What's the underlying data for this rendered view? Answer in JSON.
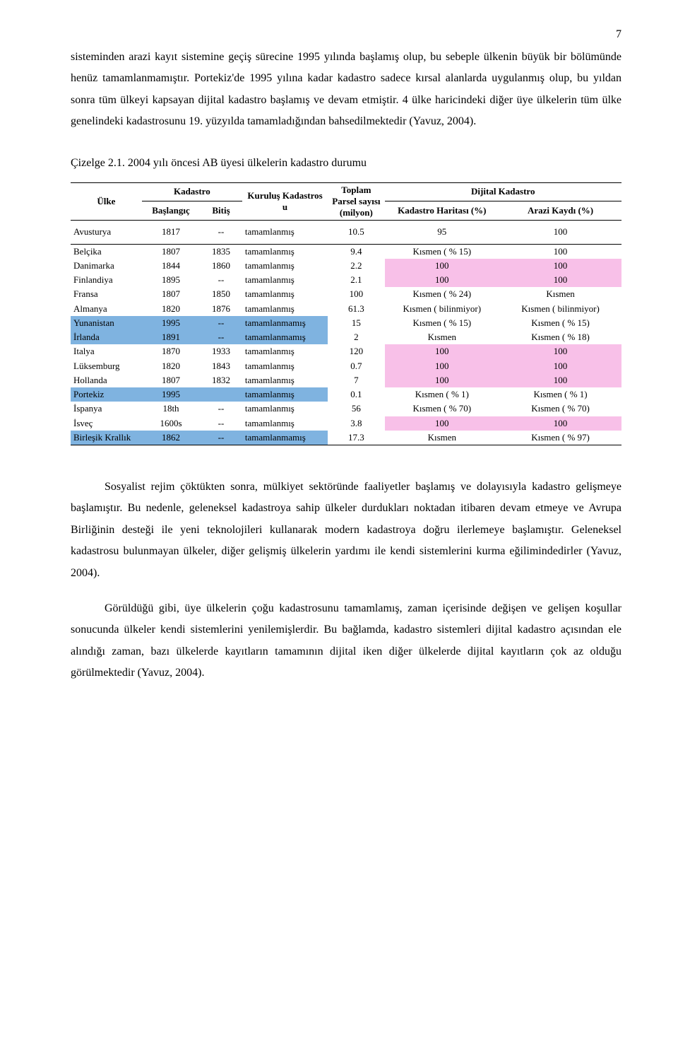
{
  "page_number": "7",
  "paragraphs": {
    "p1": "sisteminden arazi kayıt sistemine geçiş sürecine 1995 yılında başlamış olup, bu sebeple ülkenin büyük bir bölümünde henüz tamamlanmamıştır. Portekiz'de 1995 yılına kadar kadastro sadece kırsal alanlarda uygulanmış olup, bu yıldan sonra tüm ülkeyi kapsayan dijital kadastro başlamış ve devam etmiştir. 4 ülke haricindeki diğer üye ülkelerin tüm ülke genelindeki kadastrosunu 19. yüzyılda tamamladığından bahsedilmektedir (Yavuz, 2004).",
    "p2": "Sosyalist rejim çöktükten sonra, mülkiyet sektöründe faaliyetler başlamış ve dolayısıyla kadastro gelişmeye başlamıştır. Bu nedenle, geleneksel kadastroya sahip ülkeler durdukları noktadan itibaren devam etmeye ve Avrupa Birliğinin desteği ile yeni teknolojileri kullanarak modern kadastroya doğru ilerlemeye başlamıştır. Geleneksel kadastrosu bulunmayan ülkeler, diğer gelişmiş ülkelerin yardımı ile kendi sistemlerini kurma eğilimindedirler (Yavuz, 2004).",
    "p3": "Görüldüğü gibi, üye ülkelerin çoğu kadastrosunu tamamlamış, zaman içerisinde değişen ve gelişen koşullar sonucunda ülkeler kendi sistemlerini yenilemişlerdir. Bu bağlamda, kadastro sistemleri dijital kadastro açısından ele alındığı zaman, bazı ülkelerde kayıtların tamamının dijital iken diğer ülkelerde dijital kayıtların çok az olduğu görülmektedir (Yavuz, 2004)."
  },
  "table_caption": "Çizelge 2.1. 2004 yılı öncesi AB üyesi ülkelerin kadastro durumu",
  "table": {
    "headers": {
      "ulke": "Ülke",
      "kadastro": "Kadastro",
      "baslangic": "Başlangıç",
      "bitis": "Bitiş",
      "kurulus": "Kuruluş Kadastros u",
      "toplam": "Toplam Parsel sayısı (milyon)",
      "dijital": "Dijital Kadastro",
      "harita": "Kadastro Haritası (%)",
      "arazi": "Arazi Kaydı (%)"
    },
    "highlight_colors": {
      "blue": "#7fb3e0",
      "pink": "#f8c0e8"
    },
    "rows": [
      {
        "ulke": "Avusturya",
        "start": "1817",
        "end": "--",
        "status": "tamamlanmış",
        "parcel": "10.5",
        "map": "95",
        "land": "100",
        "hl_ulke": null,
        "hl_map": null,
        "hl_land": null
      },
      {
        "ulke": "Belçika",
        "start": "1807",
        "end": "1835",
        "status": "tamamlanmış",
        "parcel": "9.4",
        "map": "Kısmen ( % 15)",
        "land": "100",
        "hl_ulke": null,
        "hl_map": null,
        "hl_land": null
      },
      {
        "ulke": "Danimarka",
        "start": "1844",
        "end": "1860",
        "status": "tamamlanmış",
        "parcel": "2.2",
        "map": "100",
        "land": "100",
        "hl_ulke": null,
        "hl_map": "pink",
        "hl_land": "pink"
      },
      {
        "ulke": "Finlandiya",
        "start": "1895",
        "end": "--",
        "status": "tamamlanmış",
        "parcel": "2.1",
        "map": "100",
        "land": "100",
        "hl_ulke": null,
        "hl_map": "pink",
        "hl_land": "pink"
      },
      {
        "ulke": "Fransa",
        "start": "1807",
        "end": "1850",
        "status": "tamamlanmış",
        "parcel": "100",
        "map": "Kısmen ( % 24)",
        "land": "Kısmen",
        "hl_ulke": null,
        "hl_map": null,
        "hl_land": null
      },
      {
        "ulke": "Almanya",
        "start": "1820",
        "end": "1876",
        "status": "tamamlanmış",
        "parcel": "61.3",
        "map": "Kısmen ( bilinmiyor)",
        "land": "Kısmen ( bilinmiyor)",
        "hl_ulke": null,
        "hl_map": null,
        "hl_land": null
      },
      {
        "ulke": "Yunanistan",
        "start": "1995",
        "end": "--",
        "status": "tamamlanmamış",
        "parcel": "15",
        "map": "Kısmen ( % 15)",
        "land": "Kısmen ( % 15)",
        "hl_ulke": "blue",
        "hl_map": null,
        "hl_land": null
      },
      {
        "ulke": "İrlanda",
        "start": "1891",
        "end": "--",
        "status": "tamamlanmamış",
        "parcel": "2",
        "map": "Kısmen",
        "land": "Kısmen ( % 18)",
        "hl_ulke": "blue",
        "hl_map": null,
        "hl_land": null
      },
      {
        "ulke": "Italya",
        "start": "1870",
        "end": "1933",
        "status": "tamamlanmış",
        "parcel": "120",
        "map": "100",
        "land": "100",
        "hl_ulke": null,
        "hl_map": "pink",
        "hl_land": "pink"
      },
      {
        "ulke": "Lüksemburg",
        "start": "1820",
        "end": "1843",
        "status": "tamamlanmış",
        "parcel": "0.7",
        "map": "100",
        "land": "100",
        "hl_ulke": null,
        "hl_map": "pink",
        "hl_land": "pink"
      },
      {
        "ulke": "Hollanda",
        "start": "1807",
        "end": "1832",
        "status": "tamamlanmış",
        "parcel": "7",
        "map": "100",
        "land": "100",
        "hl_ulke": null,
        "hl_map": "pink",
        "hl_land": "pink"
      },
      {
        "ulke": "Portekiz",
        "start": "1995",
        "end": "",
        "status": "tamamlanmış",
        "parcel": "0.1",
        "map": "Kısmen ( % 1)",
        "land": "Kısmen ( % 1)",
        "hl_ulke": "blue",
        "hl_map": null,
        "hl_land": null
      },
      {
        "ulke": "İspanya",
        "start": "18th",
        "end": "--",
        "status": "tamamlanmış",
        "parcel": "56",
        "map": "Kısmen ( % 70)",
        "land": "Kısmen ( % 70)",
        "hl_ulke": null,
        "hl_map": null,
        "hl_land": null
      },
      {
        "ulke": "İsveç",
        "start": "1600s",
        "end": "--",
        "status": "tamamlanmış",
        "parcel": "3.8",
        "map": "100",
        "land": "100",
        "hl_ulke": null,
        "hl_map": "pink",
        "hl_land": "pink"
      },
      {
        "ulke": "Birleşik Krallık",
        "start": "1862",
        "end": "--",
        "status": "tamamlanmamış",
        "parcel": "17.3",
        "map": "Kısmen",
        "land": "Kısmen ( % 97)",
        "hl_ulke": "blue",
        "hl_map": null,
        "hl_land": null
      }
    ]
  }
}
